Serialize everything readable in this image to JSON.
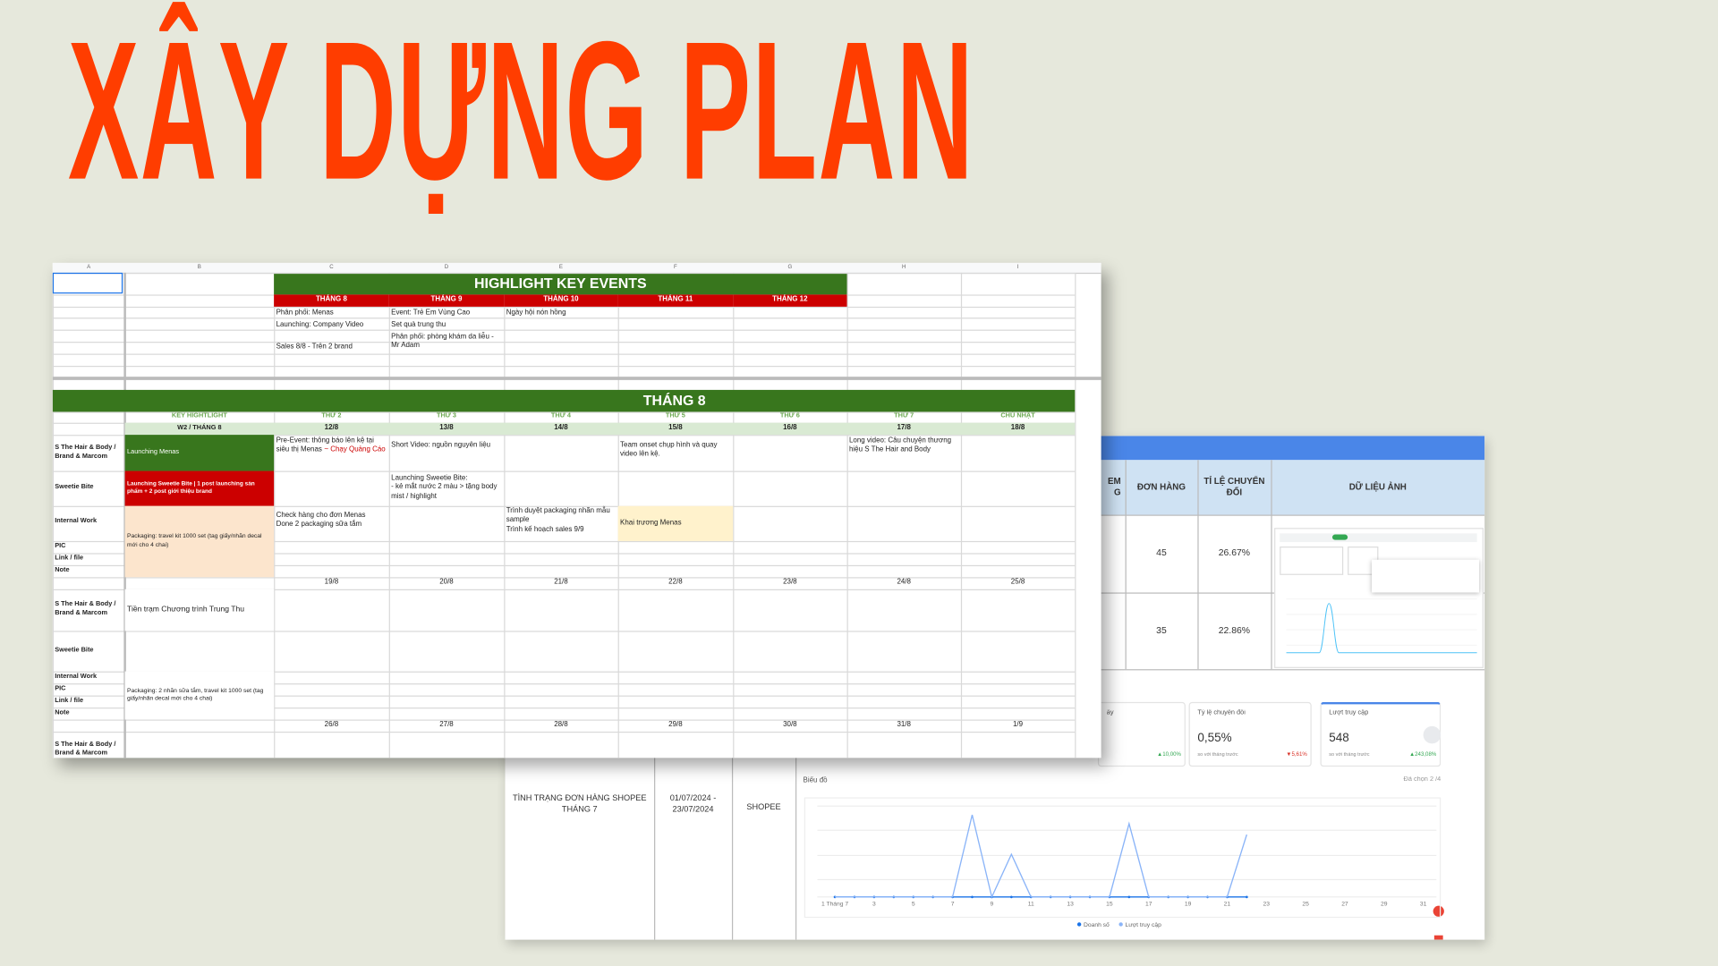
{
  "title": "XÂY DỰNG PLAN",
  "sheet": {
    "columns": [
      "A",
      "B",
      "C",
      "D",
      "E",
      "F",
      "G",
      "H",
      "I"
    ],
    "highlight": {
      "title": "HIGHLIGHT KEY EVENTS",
      "months": [
        "THÁNG 8",
        "THÁNG 9",
        "THÁNG 10",
        "THÁNG 11",
        "THÁNG 12"
      ],
      "thang8": [
        "Phân phối: Menas",
        "Launching: Company Video",
        "Sales 8/8 - Trên 2 brand"
      ],
      "thang9": [
        "Event: Trẻ Em Vùng Cao",
        "Set quà trung thu",
        "Phân phối: phòng khám da liễu - Mr Adam"
      ],
      "thang10": [
        "Ngày hội nón hồng"
      ]
    },
    "month": {
      "title": "THÁNG 8",
      "headers": [
        "KEY HIGHTLIGHT",
        "THỨ 2",
        "THỨ 3",
        "THỨ 4",
        "THỨ 5",
        "THỨ 6",
        "THỨ 7",
        "CHỦ NHẬT"
      ],
      "week_label": "W2 / THÁNG 8",
      "dates": [
        [
          "12/8",
          "13/8",
          "14/8",
          "15/8",
          "16/8",
          "17/8",
          "18/8"
        ],
        [
          "19/8",
          "20/8",
          "21/8",
          "22/8",
          "23/8",
          "24/8",
          "25/8"
        ],
        [
          "26/8",
          "27/8",
          "28/8",
          "29/8",
          "30/8",
          "31/8",
          "1/9"
        ]
      ],
      "row_labels": [
        "S The Hair & Body / Brand & Marcom",
        "Sweetie Bite",
        "Internal Work",
        "PIC",
        "Link / file",
        "Note"
      ],
      "week1": {
        "brand_key": "Launching Menas",
        "brand_mon": "Pre-Event: thông báo lên kệ tại siêu thị Menas",
        "brand_mon_red": "~ Chạy Quảng Cáo",
        "brand_tue": "Short Video: nguồn nguyên liệu",
        "brand_thu": "Team onset chụp hình và quay video lên kệ.",
        "brand_sat": "Long video: Câu chuyện thương hiệu S The Hair and Body",
        "sweetie_key": "Launching Sweetie Bite | 1 post launching sản phẩm + 2 post giới thiệu brand",
        "sweetie_tue": [
          "Launching Sweetie Bite:",
          "- kẻ mắt nước 2 màu > tặng body mist / highlight"
        ],
        "internal_key": "Packaging: travel kit 1000 set (tag giấy/nhãn decal mới cho 4 chai)",
        "internal_mon": [
          "Check hàng cho đơn Menas",
          "Done 2 packaging sữa tắm"
        ],
        "internal_wed": [
          "Trình duyệt packaging nhãn mẫu sample",
          "Trình kế hoạch sales 9/9"
        ],
        "internal_thu": "Khai trương Menas"
      },
      "week2": {
        "brand_key": "Tiền trạm Chương trình Trung Thu",
        "internal_key": "Packaging: 2 nhãn sữa tắm, travel kit 1000 set (tag giấy/nhãn decal mới cho 4 chai)"
      }
    }
  },
  "report": {
    "header_partial": [
      "EM",
      "G"
    ],
    "headers": [
      "ĐƠN HÀNG",
      "TỈ LỆ CHUYỂN ĐỔI",
      "DỮ LIỆU ẢNH"
    ],
    "rows": [
      [
        "45",
        "26.67%"
      ],
      [
        "35",
        "22.86%"
      ]
    ],
    "status": "TÌNH TRẠNG ĐƠN HÀNG SHOPEE THÁNG 7",
    "period": "01/07/2024 - 23/07/2024",
    "channel": "SHOPEE",
    "cards": [
      {
        "label": "ấy",
        "change": "▲10,00%"
      },
      {
        "label": "Tỷ lệ chuyển đổi",
        "value": "0,55%",
        "compare": "so với tháng trước",
        "change": "▼5,61%"
      },
      {
        "label": "Lượt truy cập",
        "value": "548",
        "compare": "so với tháng trước",
        "change": "▲243,08%"
      }
    ]
  },
  "chart_data": {
    "type": "line",
    "title": "Biểu đồ",
    "selection": "Đã chọn 2 /4",
    "x": [
      1,
      2,
      3,
      4,
      5,
      6,
      7,
      8,
      9,
      10,
      11,
      12,
      13,
      14,
      15,
      16,
      17,
      18,
      19,
      20,
      21,
      22
    ],
    "xlim": [
      1,
      31
    ],
    "xticks": [
      {
        "value": 1,
        "label": "1 Tháng 7"
      },
      3,
      5,
      7,
      9,
      11,
      13,
      15,
      17,
      19,
      21,
      23,
      25,
      27,
      29,
      31
    ],
    "series": [
      {
        "name": "Doanh số",
        "color": "#1a73e8",
        "values": [
          0,
          0,
          0,
          0,
          0,
          0,
          0,
          0,
          0,
          0,
          0,
          0,
          0,
          0,
          0,
          0,
          0,
          0,
          0,
          0,
          0,
          0
        ]
      },
      {
        "name": "Lượt truy cập",
        "color": "#8ab4f8",
        "values": [
          0,
          0,
          0,
          0,
          0,
          0,
          0,
          75,
          0,
          39,
          0,
          0,
          0,
          0,
          0,
          67,
          0,
          0,
          0,
          0,
          0,
          57
        ]
      }
    ]
  }
}
